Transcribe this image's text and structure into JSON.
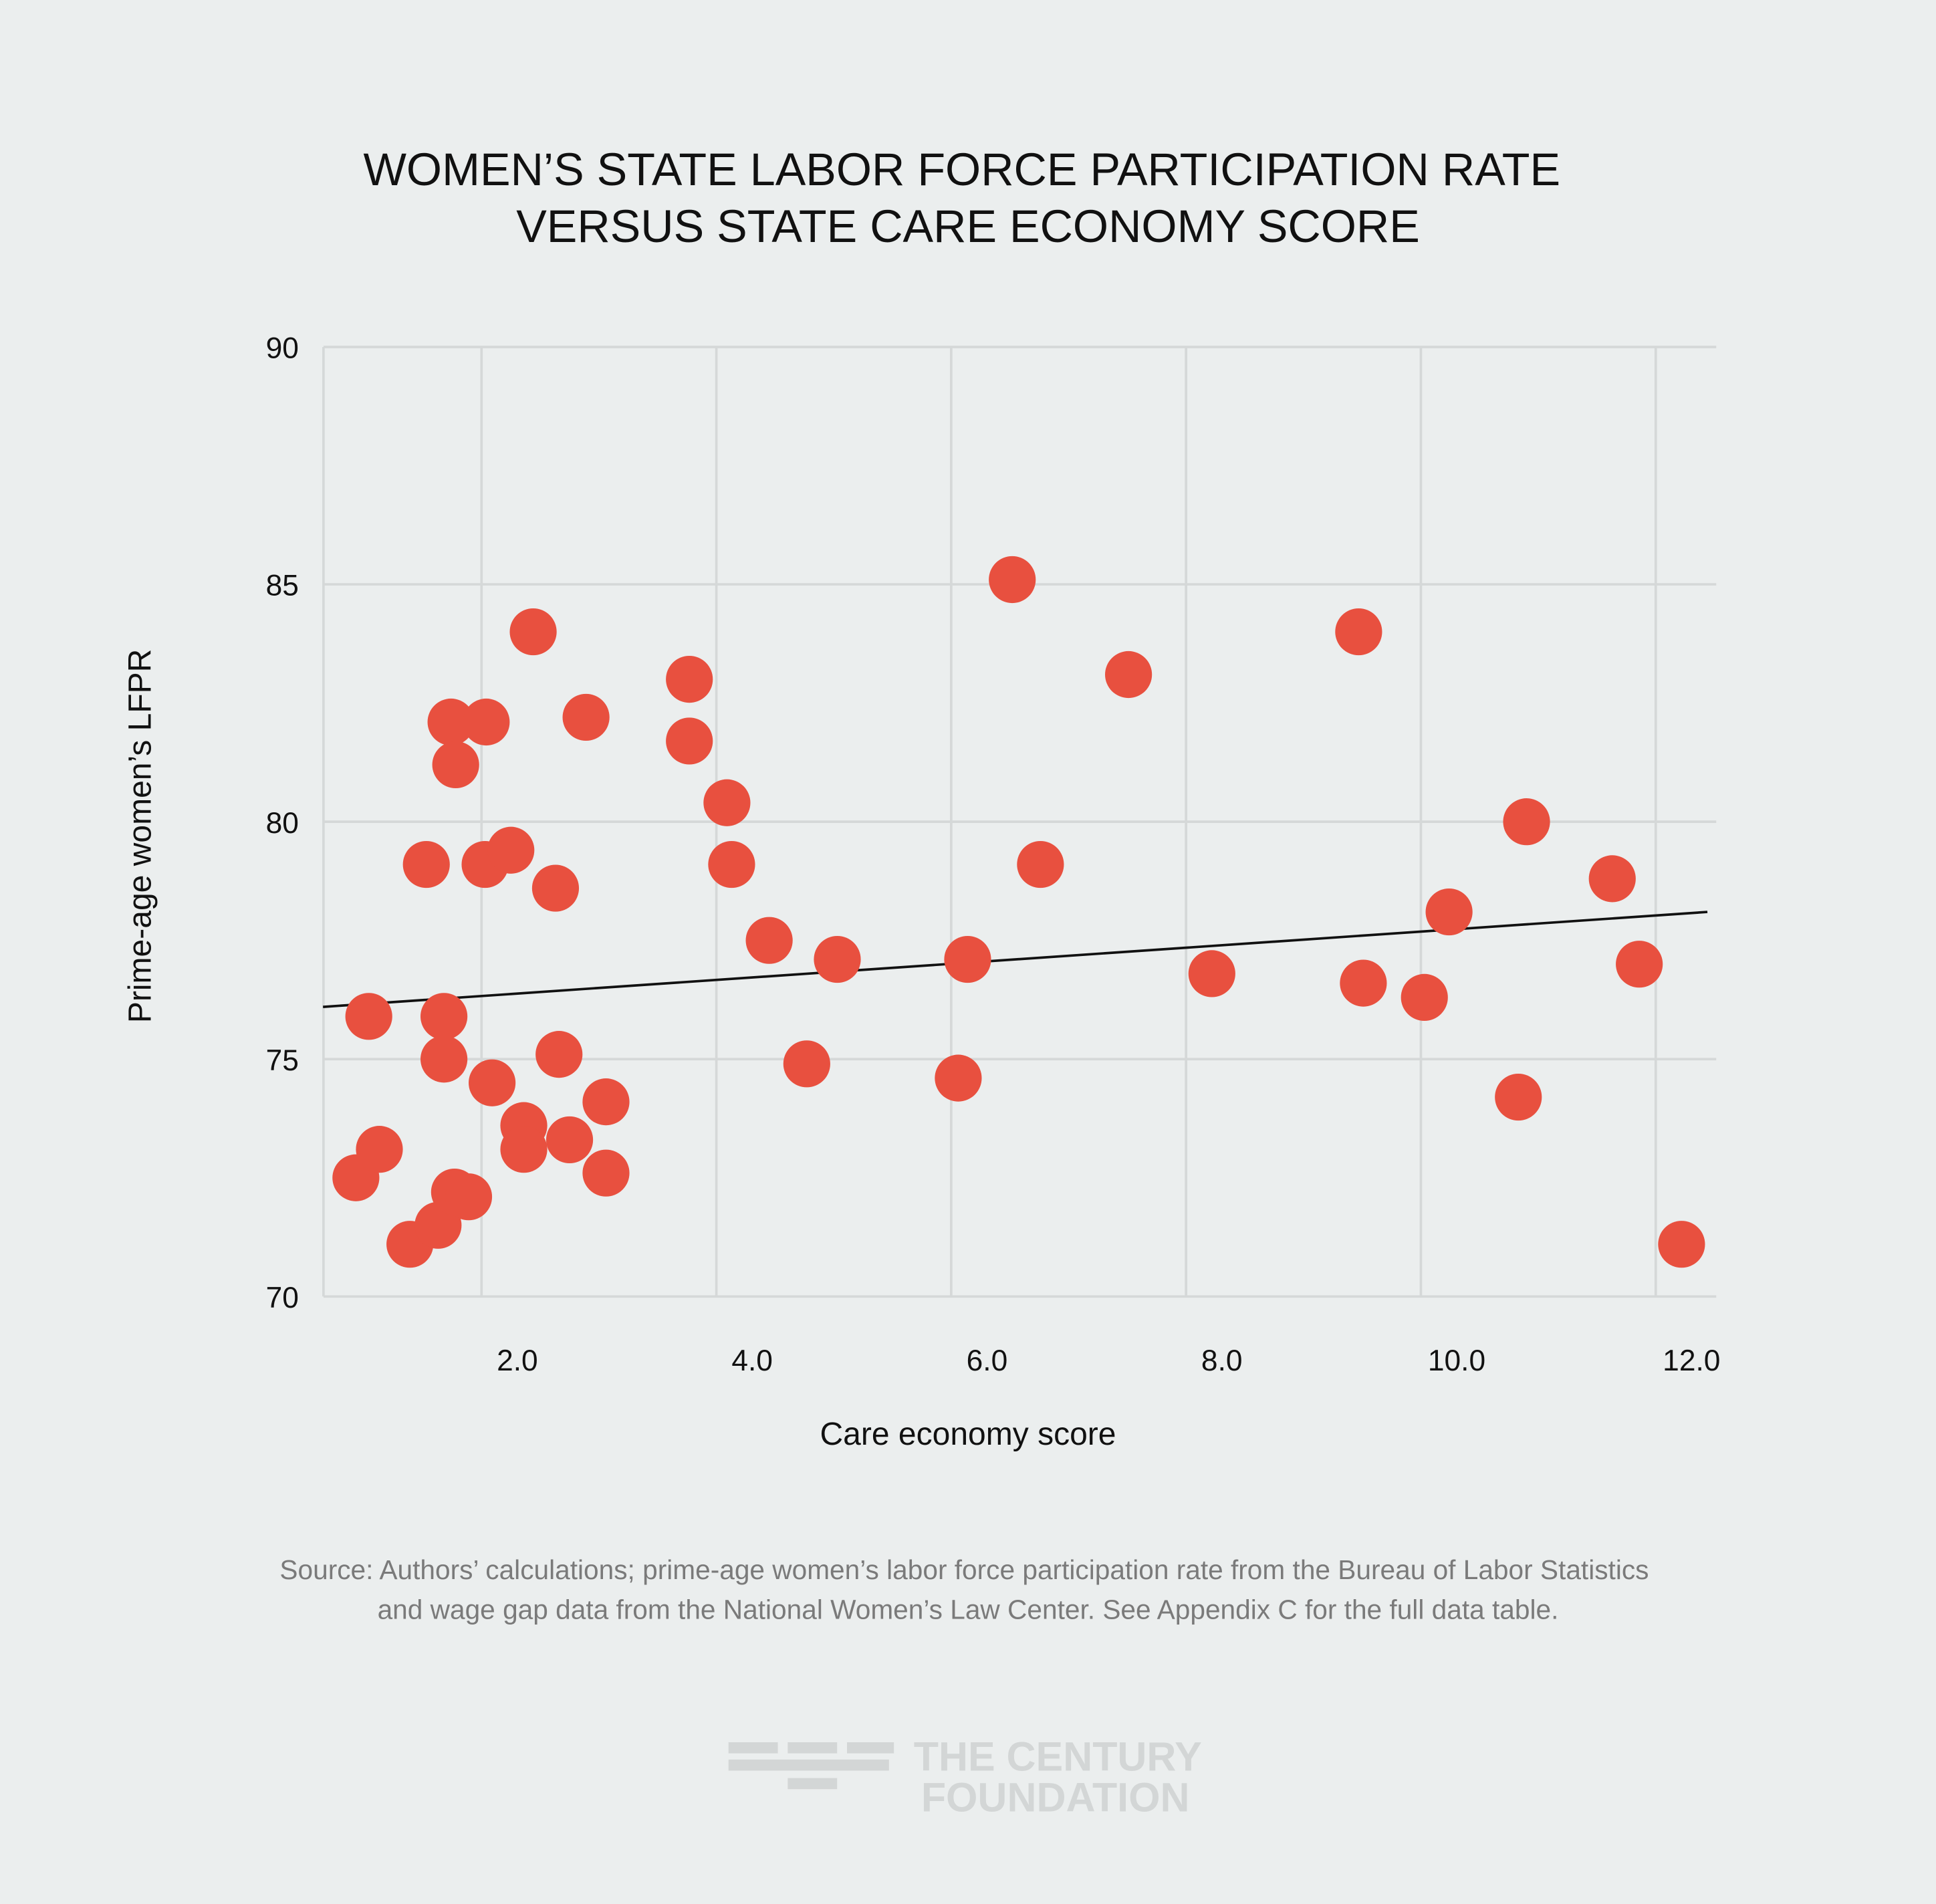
{
  "chart_data": {
    "type": "scatter",
    "title_lines": [
      "WOMEN’S STATE LABOR FORCE PARTICIPATION RATE",
      "VERSUS STATE CARE ECONOMY SCORE"
    ],
    "xlabel": "Care economy score",
    "ylabel": "Prime-age women’s LFPR",
    "xlim": [
      0.65,
      12.5
    ],
    "ylim": [
      70,
      90
    ],
    "x_ticks": [
      2,
      4,
      6,
      8,
      10,
      12
    ],
    "x_tick_labels": [
      "2.0",
      "4.0",
      "6.0",
      "8.0",
      "10.0",
      "12.0"
    ],
    "y_ticks": [
      70,
      75,
      80,
      85,
      90
    ],
    "y_tick_labels": [
      "70",
      "75",
      "80",
      "85",
      "90"
    ],
    "grid": true,
    "point_color": "#e8503f",
    "points": [
      [
        0.93,
        72.5
      ],
      [
        1.04,
        75.9
      ],
      [
        1.13,
        73.1
      ],
      [
        1.39,
        71.1
      ],
      [
        1.53,
        79.1
      ],
      [
        1.63,
        71.5
      ],
      [
        1.68,
        75.9
      ],
      [
        1.68,
        75.0
      ],
      [
        1.74,
        82.1
      ],
      [
        1.77,
        72.2
      ],
      [
        1.78,
        81.2
      ],
      [
        1.89,
        72.1
      ],
      [
        2.03,
        79.1
      ],
      [
        2.04,
        82.1
      ],
      [
        2.09,
        74.5
      ],
      [
        2.25,
        79.4
      ],
      [
        2.36,
        73.6
      ],
      [
        2.36,
        73.1
      ],
      [
        2.44,
        84.0
      ],
      [
        2.63,
        78.6
      ],
      [
        2.66,
        75.1
      ],
      [
        2.75,
        73.3
      ],
      [
        2.89,
        82.2
      ],
      [
        3.06,
        74.1
      ],
      [
        3.06,
        72.6
      ],
      [
        3.77,
        83.0
      ],
      [
        3.77,
        81.7
      ],
      [
        4.09,
        80.4
      ],
      [
        4.13,
        79.1
      ],
      [
        4.45,
        77.5
      ],
      [
        4.77,
        74.9
      ],
      [
        5.03,
        77.1
      ],
      [
        6.06,
        74.6
      ],
      [
        6.14,
        77.1
      ],
      [
        6.52,
        85.1
      ],
      [
        6.76,
        79.1
      ],
      [
        7.51,
        83.1
      ],
      [
        8.22,
        76.8
      ],
      [
        9.47,
        84.0
      ],
      [
        9.51,
        76.6
      ],
      [
        10.03,
        76.3
      ],
      [
        10.24,
        78.1
      ],
      [
        10.83,
        74.2
      ],
      [
        10.9,
        80.0
      ],
      [
        11.63,
        78.8
      ],
      [
        11.86,
        77.0
      ],
      [
        12.22,
        71.1
      ]
    ],
    "trendline": {
      "x": [
        0.65,
        12.44
      ],
      "y": [
        76.1,
        78.1
      ],
      "color": "#111111"
    }
  },
  "source_lines": [
    "Source: Authors’ calculations; prime-age women’s labor force participation rate from the Bureau of Labor Statistics",
    "and wage gap data from the National Women’s Law Center. See Appendix C for the full data table."
  ],
  "logo": {
    "line1": "THE CENTURY",
    "line2": "FOUNDATION"
  }
}
